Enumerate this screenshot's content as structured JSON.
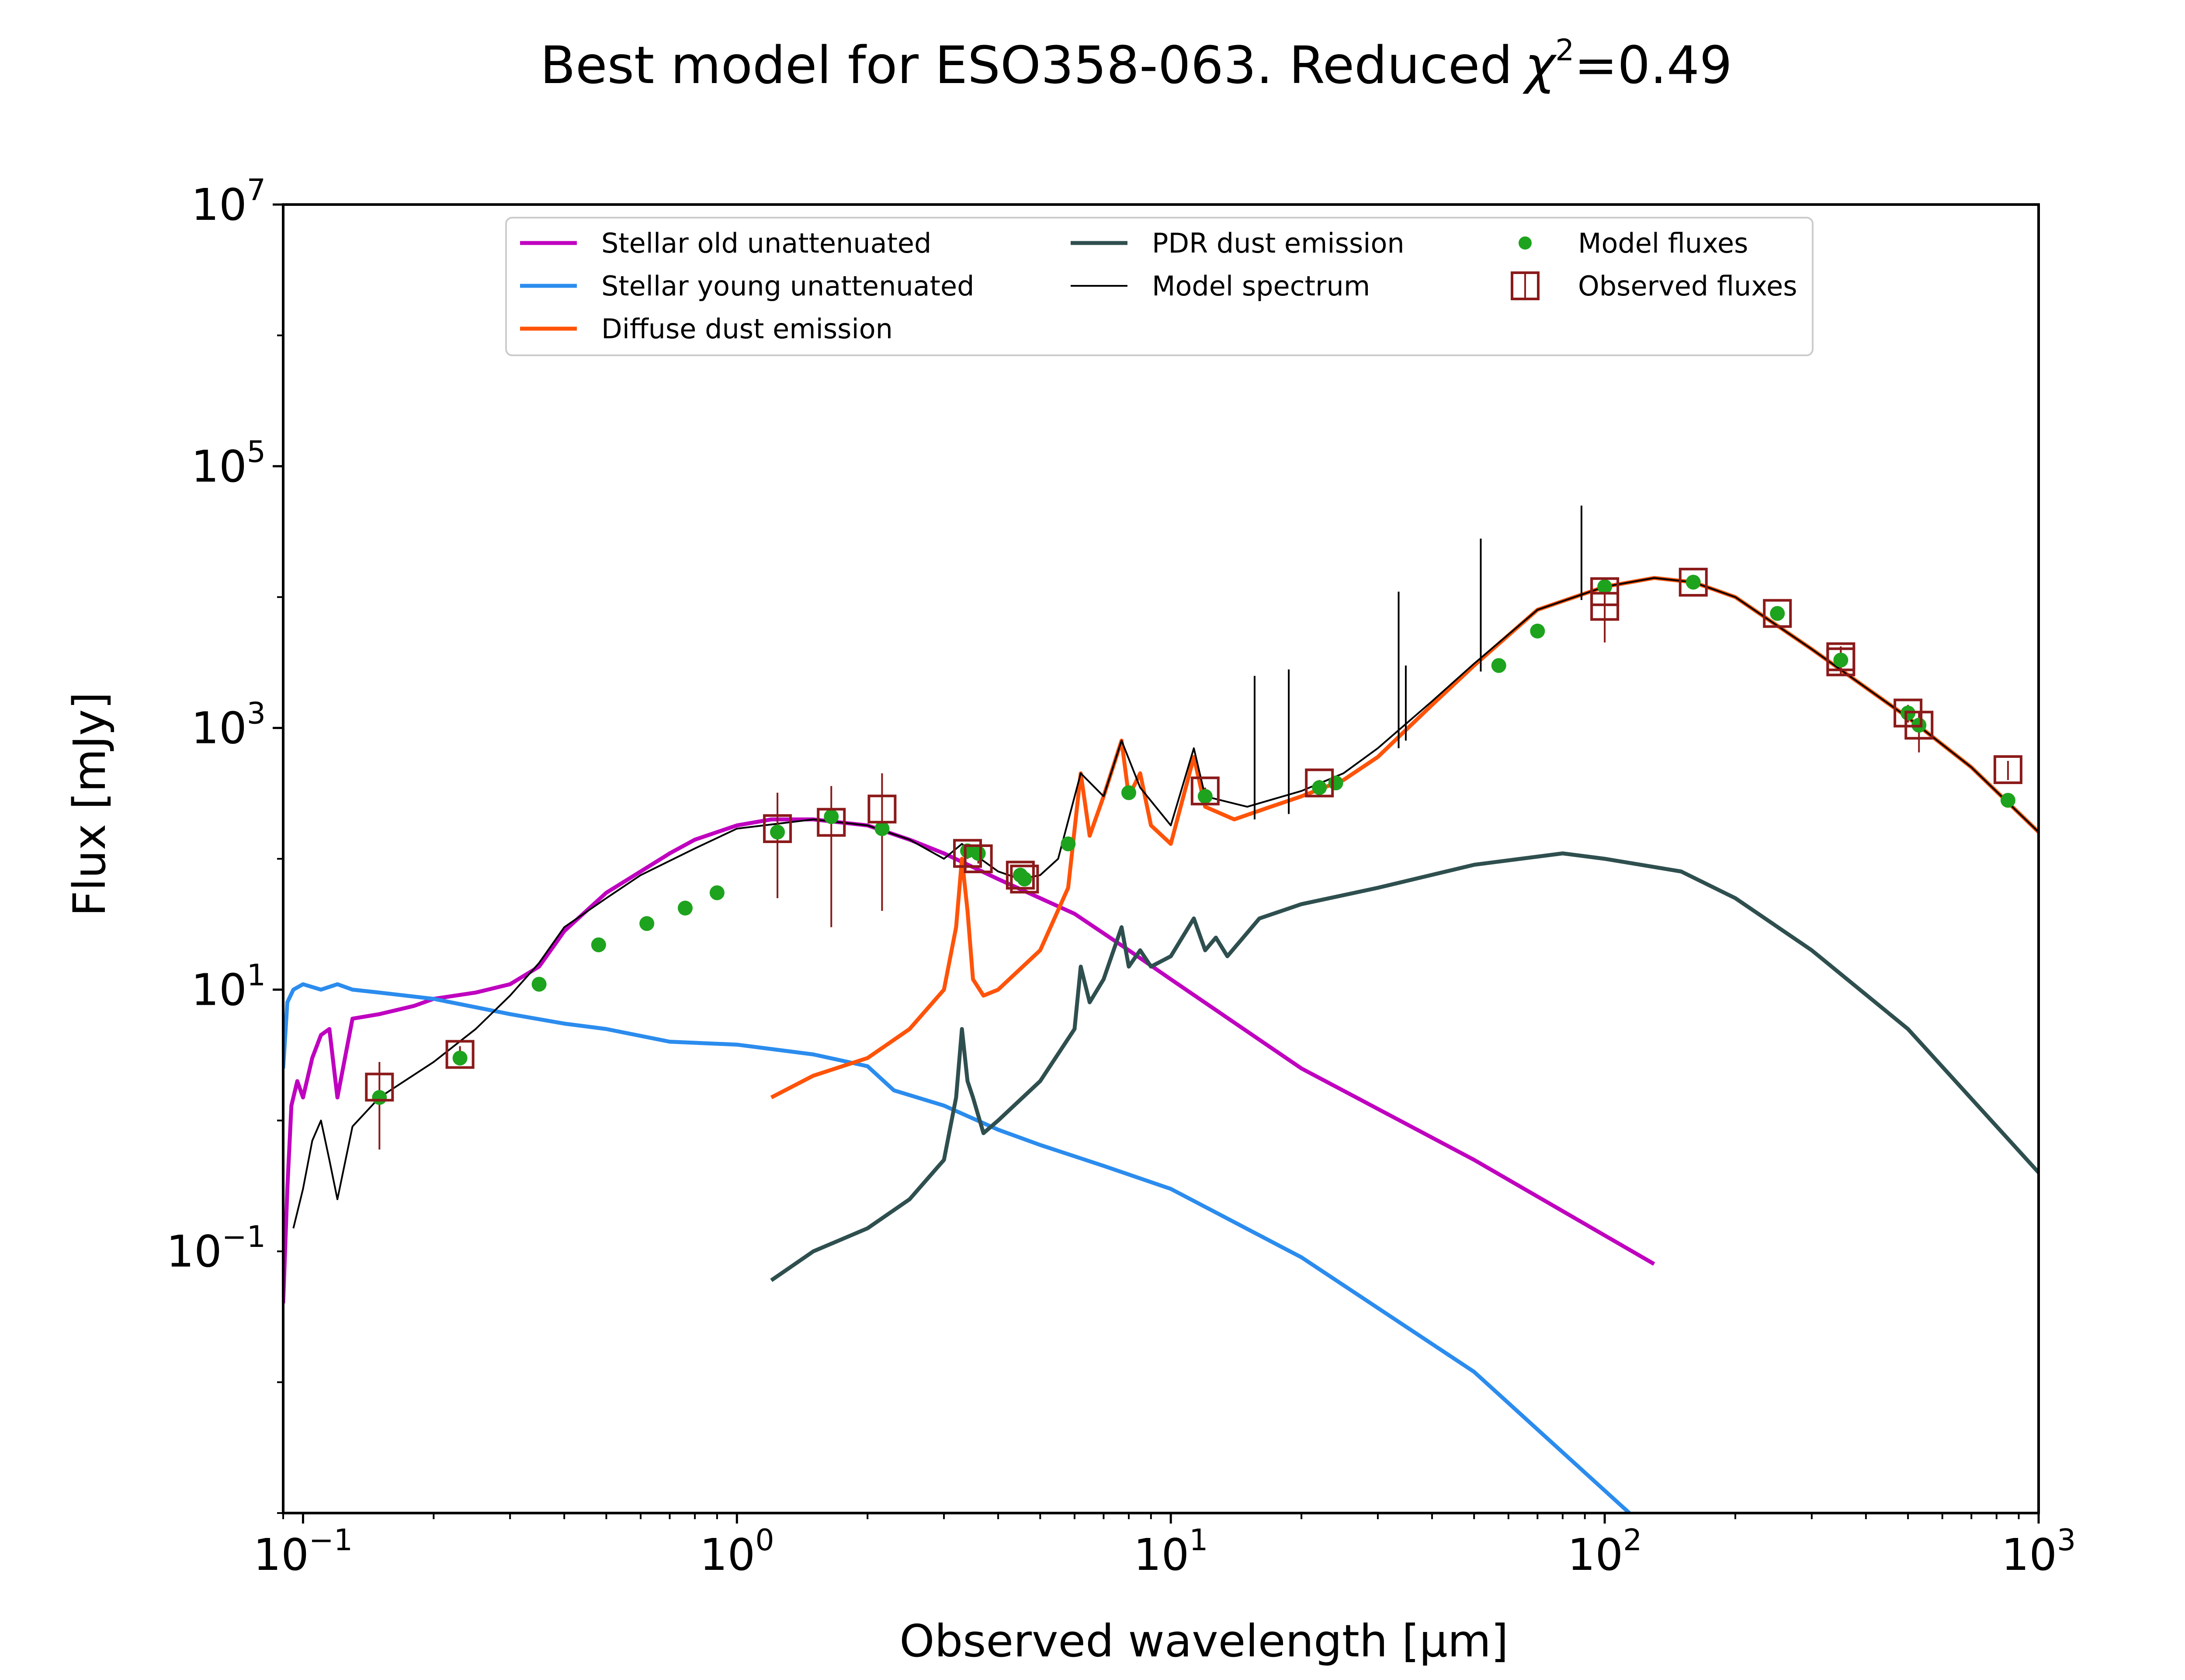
{
  "chart_data": {
    "type": "line",
    "title": "Best model for ESO358-063. Reduced",
    "title_chi_symbol": "χ",
    "title_chi_exp": "2",
    "title_chi_value": "=0.49",
    "xlabel": "Observed wavelength [μm]",
    "ylabel": "Flux [mJy]",
    "xscale": "log",
    "yscale": "log",
    "xlim": [
      0.09,
      1000
    ],
    "ylim": [
      0.001,
      10000000
    ],
    "grid": false,
    "legend_position": "upper-center",
    "x_ticks": [
      {
        "value": 0.1,
        "base": "10",
        "exp": "−1"
      },
      {
        "value": 1,
        "base": "10",
        "exp": "0"
      },
      {
        "value": 10,
        "base": "10",
        "exp": "1"
      },
      {
        "value": 100,
        "base": "10",
        "exp": "2"
      },
      {
        "value": 1000,
        "base": "10",
        "exp": "3"
      }
    ],
    "y_ticks": [
      {
        "value": 0.1,
        "base": "10",
        "exp": "−1"
      },
      {
        "value": 10,
        "base": "10",
        "exp": "1"
      },
      {
        "value": 1000,
        "base": "10",
        "exp": "3"
      },
      {
        "value": 100000,
        "base": "10",
        "exp": "5"
      },
      {
        "value": 10000000,
        "base": "10",
        "exp": "7"
      }
    ],
    "series": [
      {
        "name": "Stellar old unattenuated",
        "color": "#bf00bf",
        "x": [
          0.09,
          0.092,
          0.094,
          0.097,
          0.1,
          0.105,
          0.11,
          0.115,
          0.12,
          0.13,
          0.15,
          0.18,
          0.2,
          0.25,
          0.3,
          0.35,
          0.38,
          0.4,
          0.45,
          0.5,
          0.6,
          0.7,
          0.8,
          1.0,
          1.2,
          1.5,
          2.0,
          2.5,
          3.0,
          4.0,
          5.0,
          6.0,
          8.0,
          10,
          20,
          50,
          130
        ],
        "y": [
          0.04,
          0.3,
          1.3,
          2.0,
          1.5,
          3.0,
          4.5,
          5.0,
          1.5,
          6.0,
          6.5,
          7.5,
          8.5,
          9.5,
          11,
          15,
          22,
          28,
          40,
          55,
          80,
          110,
          140,
          180,
          200,
          200,
          180,
          140,
          110,
          70,
          50,
          38,
          20,
          12,
          2.5,
          0.5,
          0.08
        ]
      },
      {
        "name": "Stellar young unattenuated",
        "color": "#2b8cee",
        "x": [
          0.09,
          0.092,
          0.095,
          0.1,
          0.11,
          0.12,
          0.13,
          0.15,
          0.2,
          0.3,
          0.4,
          0.5,
          0.7,
          1.0,
          1.5,
          2.0,
          2.3,
          3.0,
          4.0,
          5.0,
          7.0,
          10,
          20,
          50,
          114
        ],
        "y": [
          2.5,
          8.0,
          10,
          11,
          10,
          11,
          10,
          9.5,
          8.5,
          6.5,
          5.5,
          5.0,
          4.0,
          3.8,
          3.2,
          2.6,
          1.7,
          1.3,
          0.85,
          0.65,
          0.45,
          0.3,
          0.09,
          0.012,
          0.001
        ]
      },
      {
        "name": "Diffuse dust emission",
        "color": "#ff5309",
        "x": [
          1.2,
          1.5,
          2.0,
          2.5,
          3.0,
          3.2,
          3.3,
          3.4,
          3.5,
          3.7,
          4.0,
          5.0,
          5.8,
          6.2,
          6.5,
          7.0,
          7.7,
          8.0,
          8.5,
          9.0,
          10,
          11.3,
          12,
          14,
          17,
          20,
          25,
          30,
          40,
          50,
          70,
          100,
          130,
          160,
          200,
          300,
          500,
          700,
          1000
        ],
        "y": [
          1.5,
          2.2,
          3.0,
          5.0,
          10,
          30,
          100,
          40,
          12,
          9,
          10,
          20,
          60,
          450,
          150,
          300,
          800,
          300,
          450,
          180,
          130,
          600,
          250,
          200,
          250,
          300,
          400,
          600,
          1500,
          3000,
          8000,
          12000,
          14000,
          13000,
          10000,
          4000,
          1200,
          500,
          160
        ]
      },
      {
        "name": "PDR dust emission",
        "color": "#2f4f4f",
        "x": [
          1.2,
          1.5,
          2.0,
          2.5,
          3.0,
          3.2,
          3.3,
          3.4,
          3.5,
          3.7,
          4.0,
          5.0,
          6.0,
          6.2,
          6.5,
          7.0,
          7.7,
          8.0,
          8.5,
          9.0,
          10,
          11.3,
          12,
          12.7,
          13.5,
          16,
          20,
          30,
          50,
          80,
          100,
          150,
          200,
          300,
          500,
          1000
        ],
        "y": [
          0.06,
          0.1,
          0.15,
          0.25,
          0.5,
          1.5,
          5.0,
          2.0,
          1.5,
          0.8,
          1.0,
          2.0,
          5.0,
          15,
          8.0,
          12,
          30,
          15,
          20,
          15,
          18,
          35,
          20,
          25,
          18,
          35,
          45,
          60,
          90,
          110,
          100,
          80,
          50,
          20,
          5.0,
          0.4
        ]
      },
      {
        "name": "Model spectrum",
        "color": "#000000",
        "x": [
          0.095,
          0.1,
          0.105,
          0.11,
          0.115,
          0.12,
          0.13,
          0.15,
          0.2,
          0.25,
          0.3,
          0.35,
          0.4,
          0.5,
          0.6,
          0.8,
          1.0,
          1.5,
          2.0,
          2.5,
          3.0,
          3.3,
          3.5,
          4.0,
          4.5,
          5.0,
          5.5,
          6.2,
          7.0,
          7.7,
          8.5,
          10,
          11.3,
          12,
          15,
          20,
          25,
          30,
          40,
          50,
          70,
          100,
          130,
          160,
          200,
          300,
          500,
          700,
          1000
        ],
        "y": [
          0.15,
          0.3,
          0.7,
          1.0,
          0.5,
          0.25,
          0.9,
          1.5,
          2.8,
          5.0,
          9.0,
          16,
          30,
          50,
          75,
          120,
          170,
          200,
          180,
          140,
          100,
          130,
          110,
          80,
          70,
          75,
          100,
          450,
          300,
          800,
          350,
          180,
          700,
          300,
          250,
          330,
          450,
          700,
          1600,
          3100,
          8000,
          12000,
          14000,
          13000,
          10000,
          4000,
          1200,
          500,
          160
        ]
      },
      {
        "name": "Model fluxes",
        "color": "#1ea31e",
        "x": [
          0.15,
          0.23,
          0.35,
          0.48,
          0.62,
          0.76,
          0.9,
          1.24,
          1.65,
          2.16,
          3.4,
          3.6,
          4.5,
          4.6,
          5.8,
          8.0,
          12,
          22,
          24,
          57,
          70,
          100,
          160,
          250,
          350,
          500,
          530,
          850
        ],
        "y": [
          1.5,
          3.0,
          11,
          22,
          32,
          42,
          55,
          160,
          210,
          170,
          115,
          110,
          75,
          70,
          130,
          320,
          300,
          350,
          380,
          3000,
          5500,
          12000,
          13000,
          7500,
          3300,
          1300,
          1050,
          280
        ]
      },
      {
        "name": "Observed fluxes",
        "color": "#8b1a1a",
        "x": [
          0.15,
          0.23,
          1.24,
          1.65,
          2.16,
          3.4,
          3.6,
          4.5,
          4.6,
          12,
          22,
          100,
          100,
          160,
          250,
          350,
          350,
          500,
          530,
          850
        ],
        "y": [
          1.8,
          3.2,
          170,
          190,
          240,
          110,
          100,
          75,
          70,
          330,
          380,
          11000,
          8500,
          13000,
          7500,
          3500,
          3200,
          1300,
          1050,
          480
        ],
        "err_lo": [
          1.2,
          0.5,
          120,
          160,
          200,
          10,
          8,
          6,
          6,
          20,
          20,
          2000,
          4000,
          1000,
          500,
          700,
          700,
          200,
          400,
          80
        ],
        "err_hi": [
          1.0,
          0.5,
          150,
          170,
          210,
          10,
          8,
          6,
          6,
          20,
          20,
          2000,
          2000,
          1000,
          500,
          700,
          700,
          200,
          300,
          80
        ]
      }
    ],
    "spectral_lines": [
      {
        "x": 15.6,
        "peak": 2500,
        "base": 200
      },
      {
        "x": 18.7,
        "peak": 2800,
        "base": 220
      },
      {
        "x": 33.5,
        "peak": 11000,
        "base": 700
      },
      {
        "x": 34.8,
        "peak": 3000,
        "base": 800
      },
      {
        "x": 51.8,
        "peak": 28000,
        "base": 2700
      },
      {
        "x": 88.4,
        "peak": 50000,
        "base": 9500
      }
    ],
    "legend": [
      {
        "label": "Stellar old unattenuated",
        "kind": "line",
        "color": "#bf00bf"
      },
      {
        "label": "Stellar young unattenuated",
        "kind": "line",
        "color": "#2b8cee"
      },
      {
        "label": "Diffuse dust emission",
        "kind": "line",
        "color": "#ff5309"
      },
      {
        "label": "PDR dust emission",
        "kind": "line",
        "color": "#2f4f4f"
      },
      {
        "label": "Model spectrum",
        "kind": "thin-line",
        "color": "#000000"
      },
      {
        "label": "Model fluxes",
        "kind": "dot",
        "color": "#1ea31e"
      },
      {
        "label": "Observed fluxes",
        "kind": "square",
        "color": "#8b1a1a"
      }
    ]
  }
}
